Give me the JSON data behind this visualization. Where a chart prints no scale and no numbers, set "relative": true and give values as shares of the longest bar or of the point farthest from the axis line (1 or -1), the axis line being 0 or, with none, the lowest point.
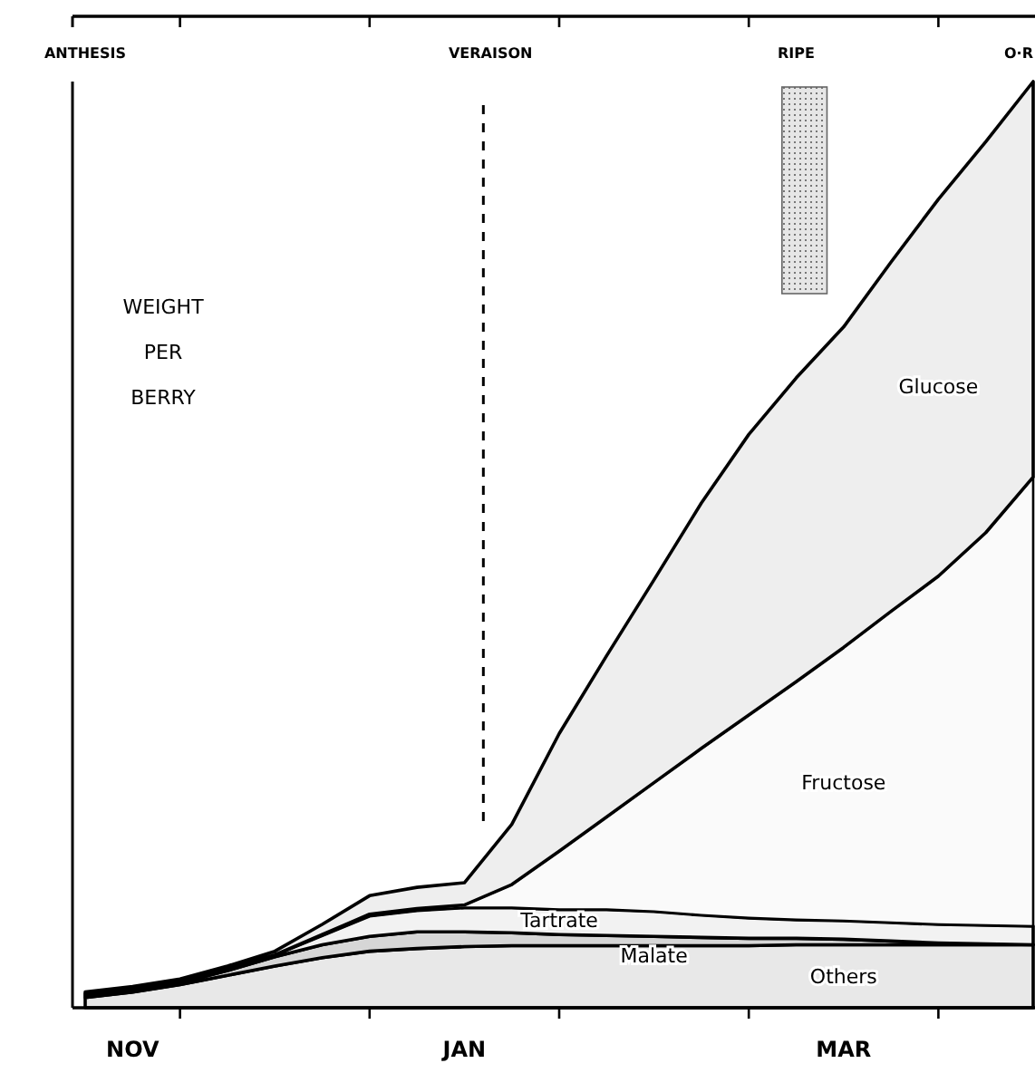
{
  "chart_data": {
    "type": "area",
    "stacked": true,
    "relative": true,
    "ylabel": "WEIGHT PER BERRY",
    "categories": [
      null,
      "NOV",
      null,
      null,
      null,
      null,
      null,
      null,
      "JAN",
      null,
      null,
      null,
      null,
      null,
      null,
      null,
      "MAR",
      null,
      null,
      null,
      null
    ],
    "annotations": [
      "ANTHESIS",
      "VERAISON",
      "RIPE",
      "O·R"
    ],
    "series": [
      {
        "name": "Others",
        "color": "#e8e8e8",
        "values": [
          0.011,
          0.017,
          0.025,
          0.035,
          0.045,
          0.054,
          0.061,
          0.064,
          0.066,
          0.067,
          0.067,
          0.067,
          0.067,
          0.067,
          0.067,
          0.068,
          0.068,
          0.068,
          0.068,
          0.068,
          0.068
        ]
      },
      {
        "name": "Malate",
        "color": "#d6d6d6",
        "values": [
          0.002,
          0.002,
          0.002,
          0.005,
          0.01,
          0.014,
          0.016,
          0.018,
          0.016,
          0.014,
          0.012,
          0.011,
          0.01,
          0.009,
          0.008,
          0.007,
          0.006,
          0.004,
          0.002,
          0.001,
          0
        ]
      },
      {
        "name": "Tartrate",
        "color": "#f2f2f2",
        "values": [
          0.002,
          0.002,
          0.002,
          0.002,
          0.002,
          0.01,
          0.022,
          0.023,
          0.026,
          0.027,
          0.027,
          0.028,
          0.027,
          0.024,
          0.022,
          0.02,
          0.02,
          0.02,
          0.02,
          0.02,
          0.02
        ]
      },
      {
        "name": "Fructose",
        "color": "#fafafa",
        "values": [
          0,
          0,
          0,
          0,
          0,
          0.001,
          0.002,
          0.002,
          0.003,
          0.025,
          0.063,
          0.1,
          0.139,
          0.18,
          0.219,
          0.257,
          0.295,
          0.336,
          0.376,
          0.424,
          0.485
        ]
      },
      {
        "name": "Glucose",
        "color": "#eeeeee",
        "values": [
          0.002,
          0.002,
          0.002,
          0.003,
          0.004,
          0.011,
          0.02,
          0.023,
          0.024,
          0.065,
          0.127,
          0.174,
          0.219,
          0.265,
          0.303,
          0.328,
          0.346,
          0.377,
          0.407,
          0.422,
          0.427
        ]
      }
    ]
  }
}
